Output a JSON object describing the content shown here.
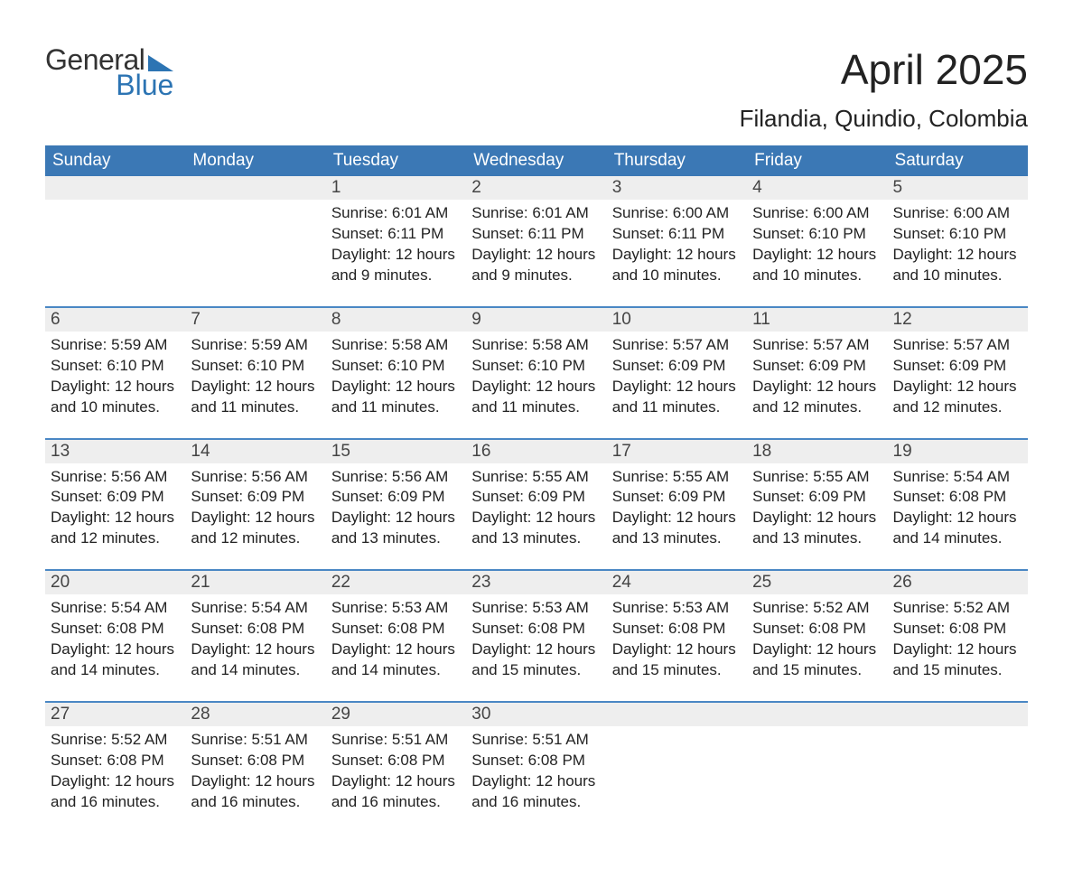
{
  "logo": {
    "line1": "General",
    "line2": "Blue"
  },
  "title": "April 2025",
  "location": "Filandia, Quindio, Colombia",
  "colors": {
    "header_bg": "#3b78b5",
    "separator": "#4a87c4",
    "date_bg": "#eeeeee",
    "logo_blue": "#2c74b3",
    "page_bg": "#ffffff",
    "text": "#222222"
  },
  "weekdays": [
    "Sunday",
    "Monday",
    "Tuesday",
    "Wednesday",
    "Thursday",
    "Friday",
    "Saturday"
  ],
  "labels": {
    "sunrise": "Sunrise:",
    "sunset": "Sunset:",
    "daylight": "Daylight:",
    "hours_word": "hours",
    "and_word": "and",
    "minutes_word": "minutes."
  },
  "weeks": [
    [
      {
        "day": null
      },
      {
        "day": null
      },
      {
        "day": "1",
        "sunrise": "6:01 AM",
        "sunset": "6:11 PM",
        "daylight_h": 12,
        "daylight_m": 9
      },
      {
        "day": "2",
        "sunrise": "6:01 AM",
        "sunset": "6:11 PM",
        "daylight_h": 12,
        "daylight_m": 9
      },
      {
        "day": "3",
        "sunrise": "6:00 AM",
        "sunset": "6:11 PM",
        "daylight_h": 12,
        "daylight_m": 10
      },
      {
        "day": "4",
        "sunrise": "6:00 AM",
        "sunset": "6:10 PM",
        "daylight_h": 12,
        "daylight_m": 10
      },
      {
        "day": "5",
        "sunrise": "6:00 AM",
        "sunset": "6:10 PM",
        "daylight_h": 12,
        "daylight_m": 10
      }
    ],
    [
      {
        "day": "6",
        "sunrise": "5:59 AM",
        "sunset": "6:10 PM",
        "daylight_h": 12,
        "daylight_m": 10
      },
      {
        "day": "7",
        "sunrise": "5:59 AM",
        "sunset": "6:10 PM",
        "daylight_h": 12,
        "daylight_m": 11
      },
      {
        "day": "8",
        "sunrise": "5:58 AM",
        "sunset": "6:10 PM",
        "daylight_h": 12,
        "daylight_m": 11
      },
      {
        "day": "9",
        "sunrise": "5:58 AM",
        "sunset": "6:10 PM",
        "daylight_h": 12,
        "daylight_m": 11
      },
      {
        "day": "10",
        "sunrise": "5:57 AM",
        "sunset": "6:09 PM",
        "daylight_h": 12,
        "daylight_m": 11
      },
      {
        "day": "11",
        "sunrise": "5:57 AM",
        "sunset": "6:09 PM",
        "daylight_h": 12,
        "daylight_m": 12
      },
      {
        "day": "12",
        "sunrise": "5:57 AM",
        "sunset": "6:09 PM",
        "daylight_h": 12,
        "daylight_m": 12
      }
    ],
    [
      {
        "day": "13",
        "sunrise": "5:56 AM",
        "sunset": "6:09 PM",
        "daylight_h": 12,
        "daylight_m": 12
      },
      {
        "day": "14",
        "sunrise": "5:56 AM",
        "sunset": "6:09 PM",
        "daylight_h": 12,
        "daylight_m": 12
      },
      {
        "day": "15",
        "sunrise": "5:56 AM",
        "sunset": "6:09 PM",
        "daylight_h": 12,
        "daylight_m": 13
      },
      {
        "day": "16",
        "sunrise": "5:55 AM",
        "sunset": "6:09 PM",
        "daylight_h": 12,
        "daylight_m": 13
      },
      {
        "day": "17",
        "sunrise": "5:55 AM",
        "sunset": "6:09 PM",
        "daylight_h": 12,
        "daylight_m": 13
      },
      {
        "day": "18",
        "sunrise": "5:55 AM",
        "sunset": "6:09 PM",
        "daylight_h": 12,
        "daylight_m": 13
      },
      {
        "day": "19",
        "sunrise": "5:54 AM",
        "sunset": "6:08 PM",
        "daylight_h": 12,
        "daylight_m": 14
      }
    ],
    [
      {
        "day": "20",
        "sunrise": "5:54 AM",
        "sunset": "6:08 PM",
        "daylight_h": 12,
        "daylight_m": 14
      },
      {
        "day": "21",
        "sunrise": "5:54 AM",
        "sunset": "6:08 PM",
        "daylight_h": 12,
        "daylight_m": 14
      },
      {
        "day": "22",
        "sunrise": "5:53 AM",
        "sunset": "6:08 PM",
        "daylight_h": 12,
        "daylight_m": 14
      },
      {
        "day": "23",
        "sunrise": "5:53 AM",
        "sunset": "6:08 PM",
        "daylight_h": 12,
        "daylight_m": 15
      },
      {
        "day": "24",
        "sunrise": "5:53 AM",
        "sunset": "6:08 PM",
        "daylight_h": 12,
        "daylight_m": 15
      },
      {
        "day": "25",
        "sunrise": "5:52 AM",
        "sunset": "6:08 PM",
        "daylight_h": 12,
        "daylight_m": 15
      },
      {
        "day": "26",
        "sunrise": "5:52 AM",
        "sunset": "6:08 PM",
        "daylight_h": 12,
        "daylight_m": 15
      }
    ],
    [
      {
        "day": "27",
        "sunrise": "5:52 AM",
        "sunset": "6:08 PM",
        "daylight_h": 12,
        "daylight_m": 16
      },
      {
        "day": "28",
        "sunrise": "5:51 AM",
        "sunset": "6:08 PM",
        "daylight_h": 12,
        "daylight_m": 16
      },
      {
        "day": "29",
        "sunrise": "5:51 AM",
        "sunset": "6:08 PM",
        "daylight_h": 12,
        "daylight_m": 16
      },
      {
        "day": "30",
        "sunrise": "5:51 AM",
        "sunset": "6:08 PM",
        "daylight_h": 12,
        "daylight_m": 16
      },
      {
        "day": null
      },
      {
        "day": null
      },
      {
        "day": null
      }
    ]
  ]
}
